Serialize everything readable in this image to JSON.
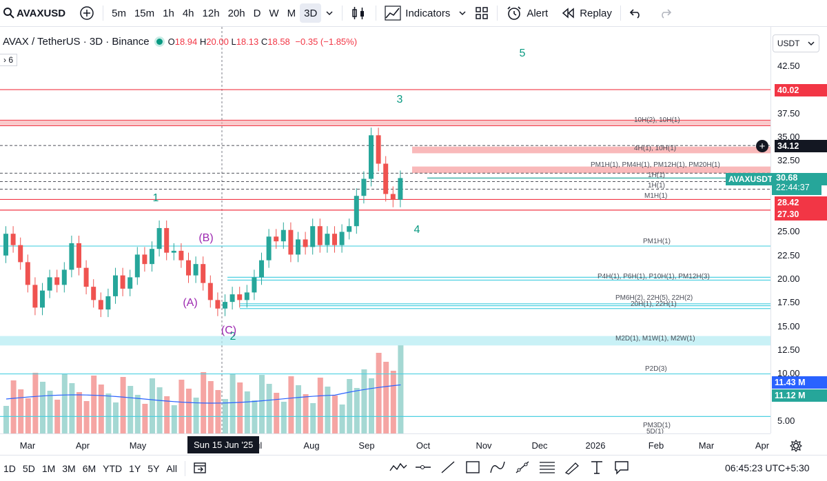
{
  "toolbar": {
    "symbol": "AVAXUSD",
    "intervals": [
      "5m",
      "15m",
      "1h",
      "4h",
      "12h",
      "20h",
      "D",
      "W",
      "M",
      "3D"
    ],
    "active_interval": "3D",
    "indicators_label": "Indicators",
    "alert_label": "Alert",
    "replay_label": "Replay"
  },
  "legend": {
    "title": "AVAX / TetherUS · 3D · Binance",
    "o_label": "O",
    "o_value": "18.94",
    "h_label": "H",
    "h_value": "20.00",
    "l_label": "L",
    "l_value": "18.13",
    "c_label": "C",
    "c_value": "18.58",
    "change": "−0.35 (−1.85%)",
    "indicator_tag": "6"
  },
  "price_scale": {
    "currency": "USDT",
    "ticks": [
      "42.50",
      "37.50",
      "35.00",
      "32.50",
      "25.00",
      "22.50",
      "20.00",
      "17.50",
      "15.00",
      "12.50",
      "10.00",
      "5.00"
    ],
    "labels": {
      "level_top": "40.02",
      "crosshair": "34.12",
      "current_symbol": "AVAXUSDT",
      "current": "30.68",
      "countdown": "22:44:37",
      "level_a": "28.42",
      "level_b": "27.30",
      "vol_ma": "11.43 M",
      "vol": "11.12 M"
    }
  },
  "chart_labels": {
    "wave_1": "1",
    "wave_2": "2",
    "wave_3": "3",
    "wave_4": "4",
    "wave_5": "5",
    "wave_A": "(A)",
    "wave_B": "(B)",
    "wave_C": "(C)",
    "zone_1": "10H(2), 10H(1)",
    "zone_2": "4H(1), 10H(1)",
    "zone_3": "PM1H(1), PM4H(1), PM12H(1), PM20H(1)",
    "zone_4": "1H(1)",
    "zone_5": "1H(1)",
    "zone_6": "M1H(1)",
    "zone_7": "PM1H(1)",
    "zone_8": "P4H(1), P6H(1), P10H(1), PM12H(3)",
    "zone_9": "PM6H(2), 22H(5), 22H(2)",
    "zone_10": "20H(1), 22H(1)",
    "zone_11": "M2D(1), M1W(1), M2W(1)",
    "zone_12": "P2D(3)",
    "zone_13": "PM3D(1)",
    "zone_14": "5D(1)"
  },
  "time_axis": {
    "labels": [
      "Mar",
      "Apr",
      "May",
      "Jul",
      "Aug",
      "Sep",
      "Oct",
      "Nov",
      "Dec",
      "2026",
      "Feb",
      "Mar",
      "Apr"
    ],
    "crosshair_date": "Sun 15 Jun '25"
  },
  "bottom_bar": {
    "ranges": [
      "1D",
      "5D",
      "1M",
      "3M",
      "6M",
      "YTD",
      "1Y",
      "5Y",
      "All"
    ],
    "clock": "06:45:23 UTC+5:30"
  },
  "colors": {
    "up": "#26a69a",
    "down": "#ef5350",
    "level": "#f23645",
    "support": "#4dd0e1",
    "wave": "#089981",
    "abc": "#9c27b0"
  },
  "chart_data": {
    "type": "candlestick",
    "symbol": "AVAXUSDT",
    "interval": "3D",
    "y_axis_ticks": [
      42.5,
      37.5,
      35,
      32.5,
      25,
      22.5,
      20,
      17.5,
      15,
      12.5,
      10,
      5
    ],
    "candles_approx": [
      {
        "o": 22.5,
        "c": 24.8
      },
      {
        "o": 24.8,
        "c": 23.6
      },
      {
        "o": 23.6,
        "c": 21.8
      },
      {
        "o": 21.8,
        "c": 19.4
      },
      {
        "o": 19.4,
        "c": 17.0
      },
      {
        "o": 17.0,
        "c": 18.8
      },
      {
        "o": 18.8,
        "c": 20.2
      },
      {
        "o": 20.2,
        "c": 19.4
      },
      {
        "o": 19.4,
        "c": 21.0
      },
      {
        "o": 21.0,
        "c": 23.8
      },
      {
        "o": 23.8,
        "c": 21.2
      },
      {
        "o": 21.2,
        "c": 19.2
      },
      {
        "o": 19.2,
        "c": 17.8
      },
      {
        "o": 17.8,
        "c": 16.8
      },
      {
        "o": 16.8,
        "c": 18.2
      },
      {
        "o": 18.2,
        "c": 20.4
      },
      {
        "o": 20.4,
        "c": 19.0
      },
      {
        "o": 19.0,
        "c": 20.2
      },
      {
        "o": 20.2,
        "c": 22.6
      },
      {
        "o": 22.6,
        "c": 21.6
      },
      {
        "o": 21.6,
        "c": 23.2
      },
      {
        "o": 23.2,
        "c": 25.4
      },
      {
        "o": 25.4,
        "c": 22.8
      },
      {
        "o": 22.8,
        "c": 23.0
      },
      {
        "o": 23.0,
        "c": 22.0
      },
      {
        "o": 22.0,
        "c": 20.4
      },
      {
        "o": 20.4,
        "c": 21.6
      },
      {
        "o": 21.6,
        "c": 19.6
      },
      {
        "o": 19.6,
        "c": 17.8
      },
      {
        "o": 17.8,
        "c": 16.9
      },
      {
        "o": 16.9,
        "c": 17.6
      },
      {
        "o": 17.6,
        "c": 18.4
      },
      {
        "o": 18.4,
        "c": 17.8
      },
      {
        "o": 17.8,
        "c": 18.6
      },
      {
        "o": 18.6,
        "c": 20.2
      },
      {
        "o": 20.2,
        "c": 22.0
      },
      {
        "o": 22.0,
        "c": 24.5
      },
      {
        "o": 24.5,
        "c": 24.0
      },
      {
        "o": 24.0,
        "c": 25.2
      },
      {
        "o": 25.2,
        "c": 22.6
      },
      {
        "o": 22.6,
        "c": 24.2
      },
      {
        "o": 24.2,
        "c": 23.4
      },
      {
        "o": 23.4,
        "c": 25.6
      },
      {
        "o": 25.6,
        "c": 23.6
      },
      {
        "o": 23.6,
        "c": 24.8
      },
      {
        "o": 24.8,
        "c": 23.6
      },
      {
        "o": 23.6,
        "c": 25.0
      },
      {
        "o": 25.0,
        "c": 25.6
      },
      {
        "o": 25.6,
        "c": 28.8
      },
      {
        "o": 28.8,
        "c": 30.6
      },
      {
        "o": 30.6,
        "c": 35.2
      },
      {
        "o": 35.2,
        "c": 32.2
      },
      {
        "o": 32.2,
        "c": 29.0
      },
      {
        "o": 29.0,
        "c": 28.4
      },
      {
        "o": 28.4,
        "c": 30.68
      }
    ],
    "horizontal_levels": [
      40.02,
      28.42,
      27.3
    ]
  }
}
